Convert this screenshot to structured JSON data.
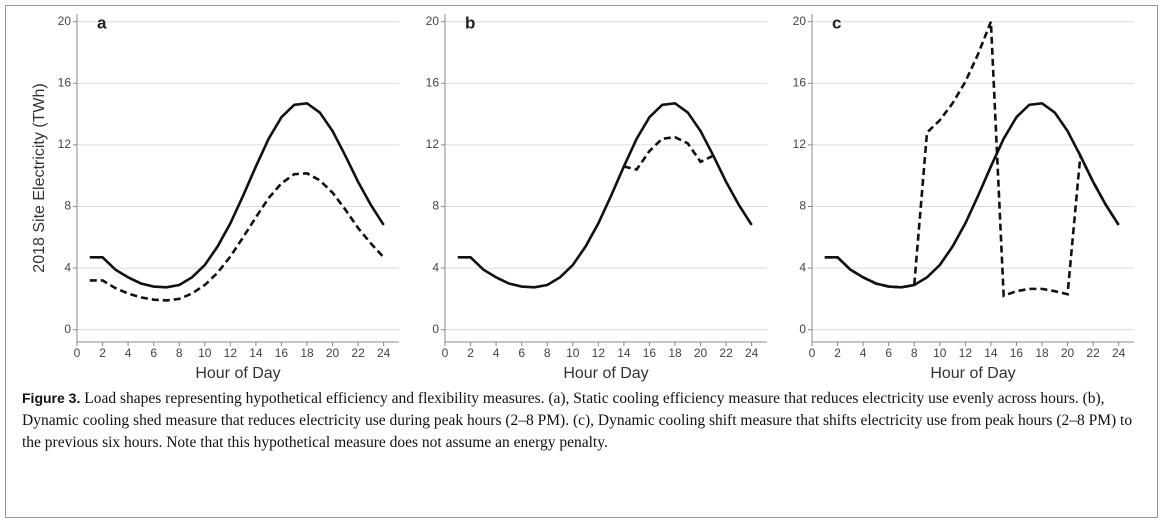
{
  "chart_data": [
    {
      "type": "line",
      "panel_label": "a",
      "y_label": "2018 Site Electricity (TWh)",
      "x_label": "Hour of Day",
      "x": [
        1,
        2,
        3,
        4,
        5,
        6,
        7,
        8,
        9,
        10,
        11,
        12,
        13,
        14,
        15,
        16,
        17,
        18,
        19,
        20,
        21,
        22,
        23,
        24
      ],
      "series": [
        {
          "style": "solid",
          "color": "#111111",
          "values": [
            4.7,
            4.7,
            3.9,
            3.4,
            3.0,
            2.8,
            2.75,
            2.9,
            3.4,
            4.2,
            5.4,
            6.9,
            8.7,
            10.6,
            12.4,
            13.8,
            14.6,
            14.7,
            14.1,
            12.9,
            11.3,
            9.6,
            8.1,
            6.8
          ]
        },
        {
          "style": "dashed",
          "color": "#111111",
          "values": [
            3.2,
            3.2,
            2.7,
            2.35,
            2.1,
            1.95,
            1.9,
            2.0,
            2.35,
            2.9,
            3.7,
            4.75,
            6.0,
            7.3,
            8.55,
            9.5,
            10.1,
            10.15,
            9.7,
            8.9,
            7.8,
            6.6,
            5.6,
            4.7
          ]
        }
      ],
      "xlim": [
        0,
        25.2
      ],
      "xticks": [
        0,
        2,
        4,
        6,
        8,
        10,
        12,
        14,
        16,
        18,
        20,
        22,
        24
      ],
      "ylim": [
        -0.8,
        20.5
      ],
      "yticks": [
        0,
        4,
        8,
        12,
        16,
        20
      ],
      "grid": true
    },
    {
      "type": "line",
      "panel_label": "b",
      "x_label": "Hour of Day",
      "x": [
        1,
        2,
        3,
        4,
        5,
        6,
        7,
        8,
        9,
        10,
        11,
        12,
        13,
        14,
        15,
        16,
        17,
        18,
        19,
        20,
        21,
        22,
        23,
        24
      ],
      "series": [
        {
          "style": "solid",
          "color": "#111111",
          "values": [
            4.7,
            4.7,
            3.9,
            3.4,
            3.0,
            2.8,
            2.75,
            2.9,
            3.4,
            4.2,
            5.4,
            6.9,
            8.7,
            10.6,
            12.4,
            13.8,
            14.6,
            14.7,
            14.1,
            12.9,
            11.3,
            9.6,
            8.1,
            6.8
          ]
        },
        {
          "style": "dashed",
          "color": "#111111",
          "values": [
            null,
            null,
            null,
            null,
            null,
            null,
            null,
            null,
            null,
            null,
            null,
            null,
            null,
            10.6,
            10.4,
            11.6,
            12.4,
            12.5,
            12.1,
            10.9,
            11.3,
            null,
            null,
            null
          ]
        }
      ],
      "xlim": [
        0,
        25.2
      ],
      "xticks": [
        0,
        2,
        4,
        6,
        8,
        10,
        12,
        14,
        16,
        18,
        20,
        22,
        24
      ],
      "ylim": [
        -0.8,
        20.5
      ],
      "yticks": [
        0,
        4,
        8,
        12,
        16,
        20
      ],
      "grid": true
    },
    {
      "type": "line",
      "panel_label": "c",
      "x_label": "Hour of Day",
      "x": [
        1,
        2,
        3,
        4,
        5,
        6,
        7,
        8,
        9,
        10,
        11,
        12,
        13,
        14,
        15,
        16,
        17,
        18,
        19,
        20,
        21,
        22,
        23,
        24
      ],
      "series": [
        {
          "style": "solid",
          "color": "#111111",
          "values": [
            4.7,
            4.7,
            3.9,
            3.4,
            3.0,
            2.8,
            2.75,
            2.9,
            3.4,
            4.2,
            5.4,
            6.9,
            8.7,
            10.6,
            12.4,
            13.8,
            14.6,
            14.7,
            14.1,
            12.9,
            11.3,
            9.6,
            8.1,
            6.8
          ]
        },
        {
          "style": "dashed",
          "color": "#111111",
          "values": [
            4.7,
            4.7,
            3.9,
            3.4,
            3.0,
            2.8,
            2.75,
            2.9,
            12.8,
            13.6,
            14.7,
            16.1,
            17.9,
            20.0,
            2.2,
            2.5,
            2.65,
            2.65,
            2.5,
            2.3,
            11.3,
            9.6,
            8.1,
            6.8
          ]
        }
      ],
      "xlim": [
        0,
        25.2
      ],
      "xticks": [
        0,
        2,
        4,
        6,
        8,
        10,
        12,
        14,
        16,
        18,
        20,
        22,
        24
      ],
      "ylim": [
        -0.8,
        20.5
      ],
      "yticks": [
        0,
        4,
        8,
        12,
        16,
        20
      ],
      "grid": true
    }
  ],
  "caption": {
    "label": "Figure 3.",
    "text": "Load shapes representing hypothetical efficiency and flexibility measures. (a), Static cooling efficiency measure that reduces electricity use evenly across hours. (b), Dynamic cooling shed measure that reduces electricity use during peak hours (2–8 PM). (c), Dynamic cooling shift measure that shifts electricity use from peak hours (2–8 PM) to the previous six hours. Note that this hypothetical measure does not assume an energy penalty."
  }
}
